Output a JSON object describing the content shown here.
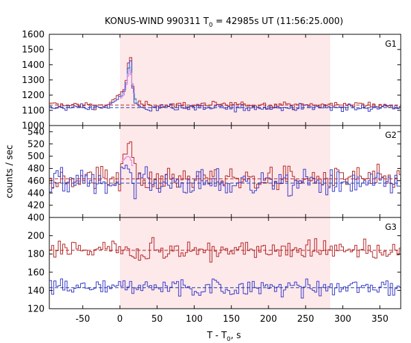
{
  "chart_data": {
    "type": "line",
    "title": "KONUS-WIND 990311 T",
    "title_sub": "0",
    "title_rest": " = 42985s UT (11:56:25.000)",
    "xlabel": "T - T",
    "xlabel_sub": "0",
    "xlabel_rest": ", s",
    "ylabel": "counts / sec",
    "xlim": [
      -95,
      378
    ],
    "x_ticks": [
      -50,
      0,
      50,
      100,
      150,
      200,
      250,
      300,
      350
    ],
    "shaded_interval": [
      0,
      283
    ],
    "colors": {
      "shade": "#fde8ea",
      "red_series": "#b22222",
      "blue_series": "#3636c8",
      "light_blue_series": "#56c3f0",
      "pink_series": "#e078e0",
      "fit_red": "#b22222",
      "fit_blue": "#1a3a9a"
    },
    "panels": [
      {
        "name": "G1",
        "ylim": [
          1000,
          1600
        ],
        "y_ticks": [
          1000,
          1100,
          1200,
          1300,
          1400,
          1500,
          1600
        ],
        "background_red": 1135,
        "background_blue": 1118,
        "peak_red": [
          [
            -15,
            1150
          ],
          [
            -10,
            1160
          ],
          [
            -5,
            1185
          ],
          [
            0,
            1205
          ],
          [
            5,
            1230
          ],
          [
            8,
            1290
          ],
          [
            10,
            1340
          ],
          [
            12,
            1430
          ],
          [
            13,
            1460
          ],
          [
            14,
            1480
          ],
          [
            15,
            1410
          ],
          [
            16,
            1300
          ],
          [
            18,
            1240
          ],
          [
            20,
            1175
          ],
          [
            24,
            1150
          ]
        ],
        "peak_blue": [
          [
            -15,
            1135
          ],
          [
            -10,
            1145
          ],
          [
            -5,
            1165
          ],
          [
            0,
            1190
          ],
          [
            5,
            1215
          ],
          [
            8,
            1270
          ],
          [
            10,
            1320
          ],
          [
            12,
            1400
          ],
          [
            13,
            1440
          ],
          [
            14,
            1460
          ],
          [
            15,
            1390
          ],
          [
            16,
            1285
          ],
          [
            18,
            1225
          ],
          [
            20,
            1160
          ],
          [
            24,
            1135
          ]
        ],
        "peak_light_blue": [
          [
            0,
            1180
          ],
          [
            5,
            1210
          ],
          [
            8,
            1260
          ],
          [
            10,
            1300
          ],
          [
            12,
            1380
          ],
          [
            14,
            1390
          ],
          [
            16,
            1300
          ],
          [
            20,
            1180
          ],
          [
            24,
            1140
          ]
        ],
        "peak_pink": [
          [
            0,
            1175
          ],
          [
            5,
            1200
          ],
          [
            8,
            1250
          ],
          [
            10,
            1290
          ],
          [
            12,
            1360
          ],
          [
            14,
            1370
          ],
          [
            16,
            1300
          ],
          [
            18,
            1250
          ],
          [
            20,
            1175
          ]
        ],
        "red_noise": 17,
        "blue_noise": 16
      },
      {
        "name": "G2",
        "ylim": [
          400,
          550
        ],
        "y_ticks": [
          400,
          420,
          440,
          460,
          480,
          500,
          520,
          540
        ],
        "background_red": 463,
        "background_blue": 456,
        "peak_red": [
          [
            0,
            480
          ],
          [
            3,
            495
          ],
          [
            6,
            505
          ],
          [
            10,
            518
          ],
          [
            14,
            530
          ],
          [
            18,
            495
          ],
          [
            22,
            480
          ]
        ],
        "peak_blue": [
          [
            0,
            468
          ],
          [
            4,
            478
          ],
          [
            8,
            485
          ],
          [
            12,
            480
          ],
          [
            16,
            472
          ]
        ],
        "peak_light_blue": [],
        "peak_pink": [
          [
            2,
            490
          ],
          [
            6,
            495
          ],
          [
            10,
            500
          ],
          [
            14,
            498
          ],
          [
            18,
            480
          ]
        ],
        "red_noise": 14,
        "blue_noise": 15
      },
      {
        "name": "G3",
        "ylim": [
          120,
          220
        ],
        "y_ticks": [
          120,
          140,
          160,
          180,
          200
        ],
        "background_red": 184,
        "background_blue": 143,
        "peak_red": [],
        "peak_blue": [],
        "peak_light_blue": [],
        "peak_pink": [],
        "red_noise": 8,
        "blue_noise": 7
      }
    ]
  }
}
